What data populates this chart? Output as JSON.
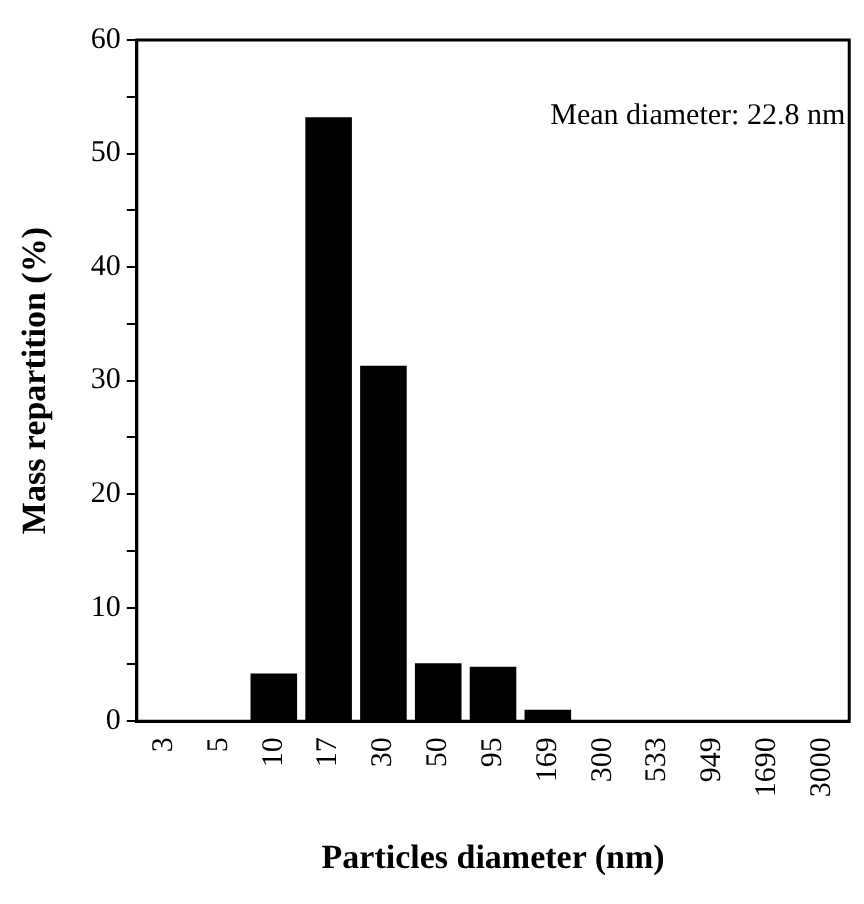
{
  "chart_data": {
    "type": "bar",
    "xlabel": "Particles diameter (nm)",
    "ylabel": "Mass repartition (%)",
    "categories": [
      "3",
      "5",
      "10",
      "17",
      "30",
      "50",
      "95",
      "169",
      "300",
      "533",
      "949",
      "1690",
      "3000"
    ],
    "values": [
      0,
      0,
      4.2,
      53.2,
      31.3,
      5.1,
      4.8,
      1.0,
      0,
      0,
      0,
      0,
      0
    ],
    "color": "#000000",
    "ylim": [
      0,
      60
    ],
    "yticks": [
      0,
      {
        "value": 5,
        "label": null
      },
      10,
      {
        "value": 15,
        "label": null
      },
      20,
      {
        "value": 25,
        "label": null
      },
      30,
      {
        "value": 35,
        "label": null
      },
      40,
      {
        "value": 45,
        "label": null
      },
      50,
      {
        "value": 55,
        "label": null
      },
      60
    ],
    "annotations": [
      "Mean diameter: 22.8 nm"
    ],
    "grid": false,
    "legend": false
  }
}
